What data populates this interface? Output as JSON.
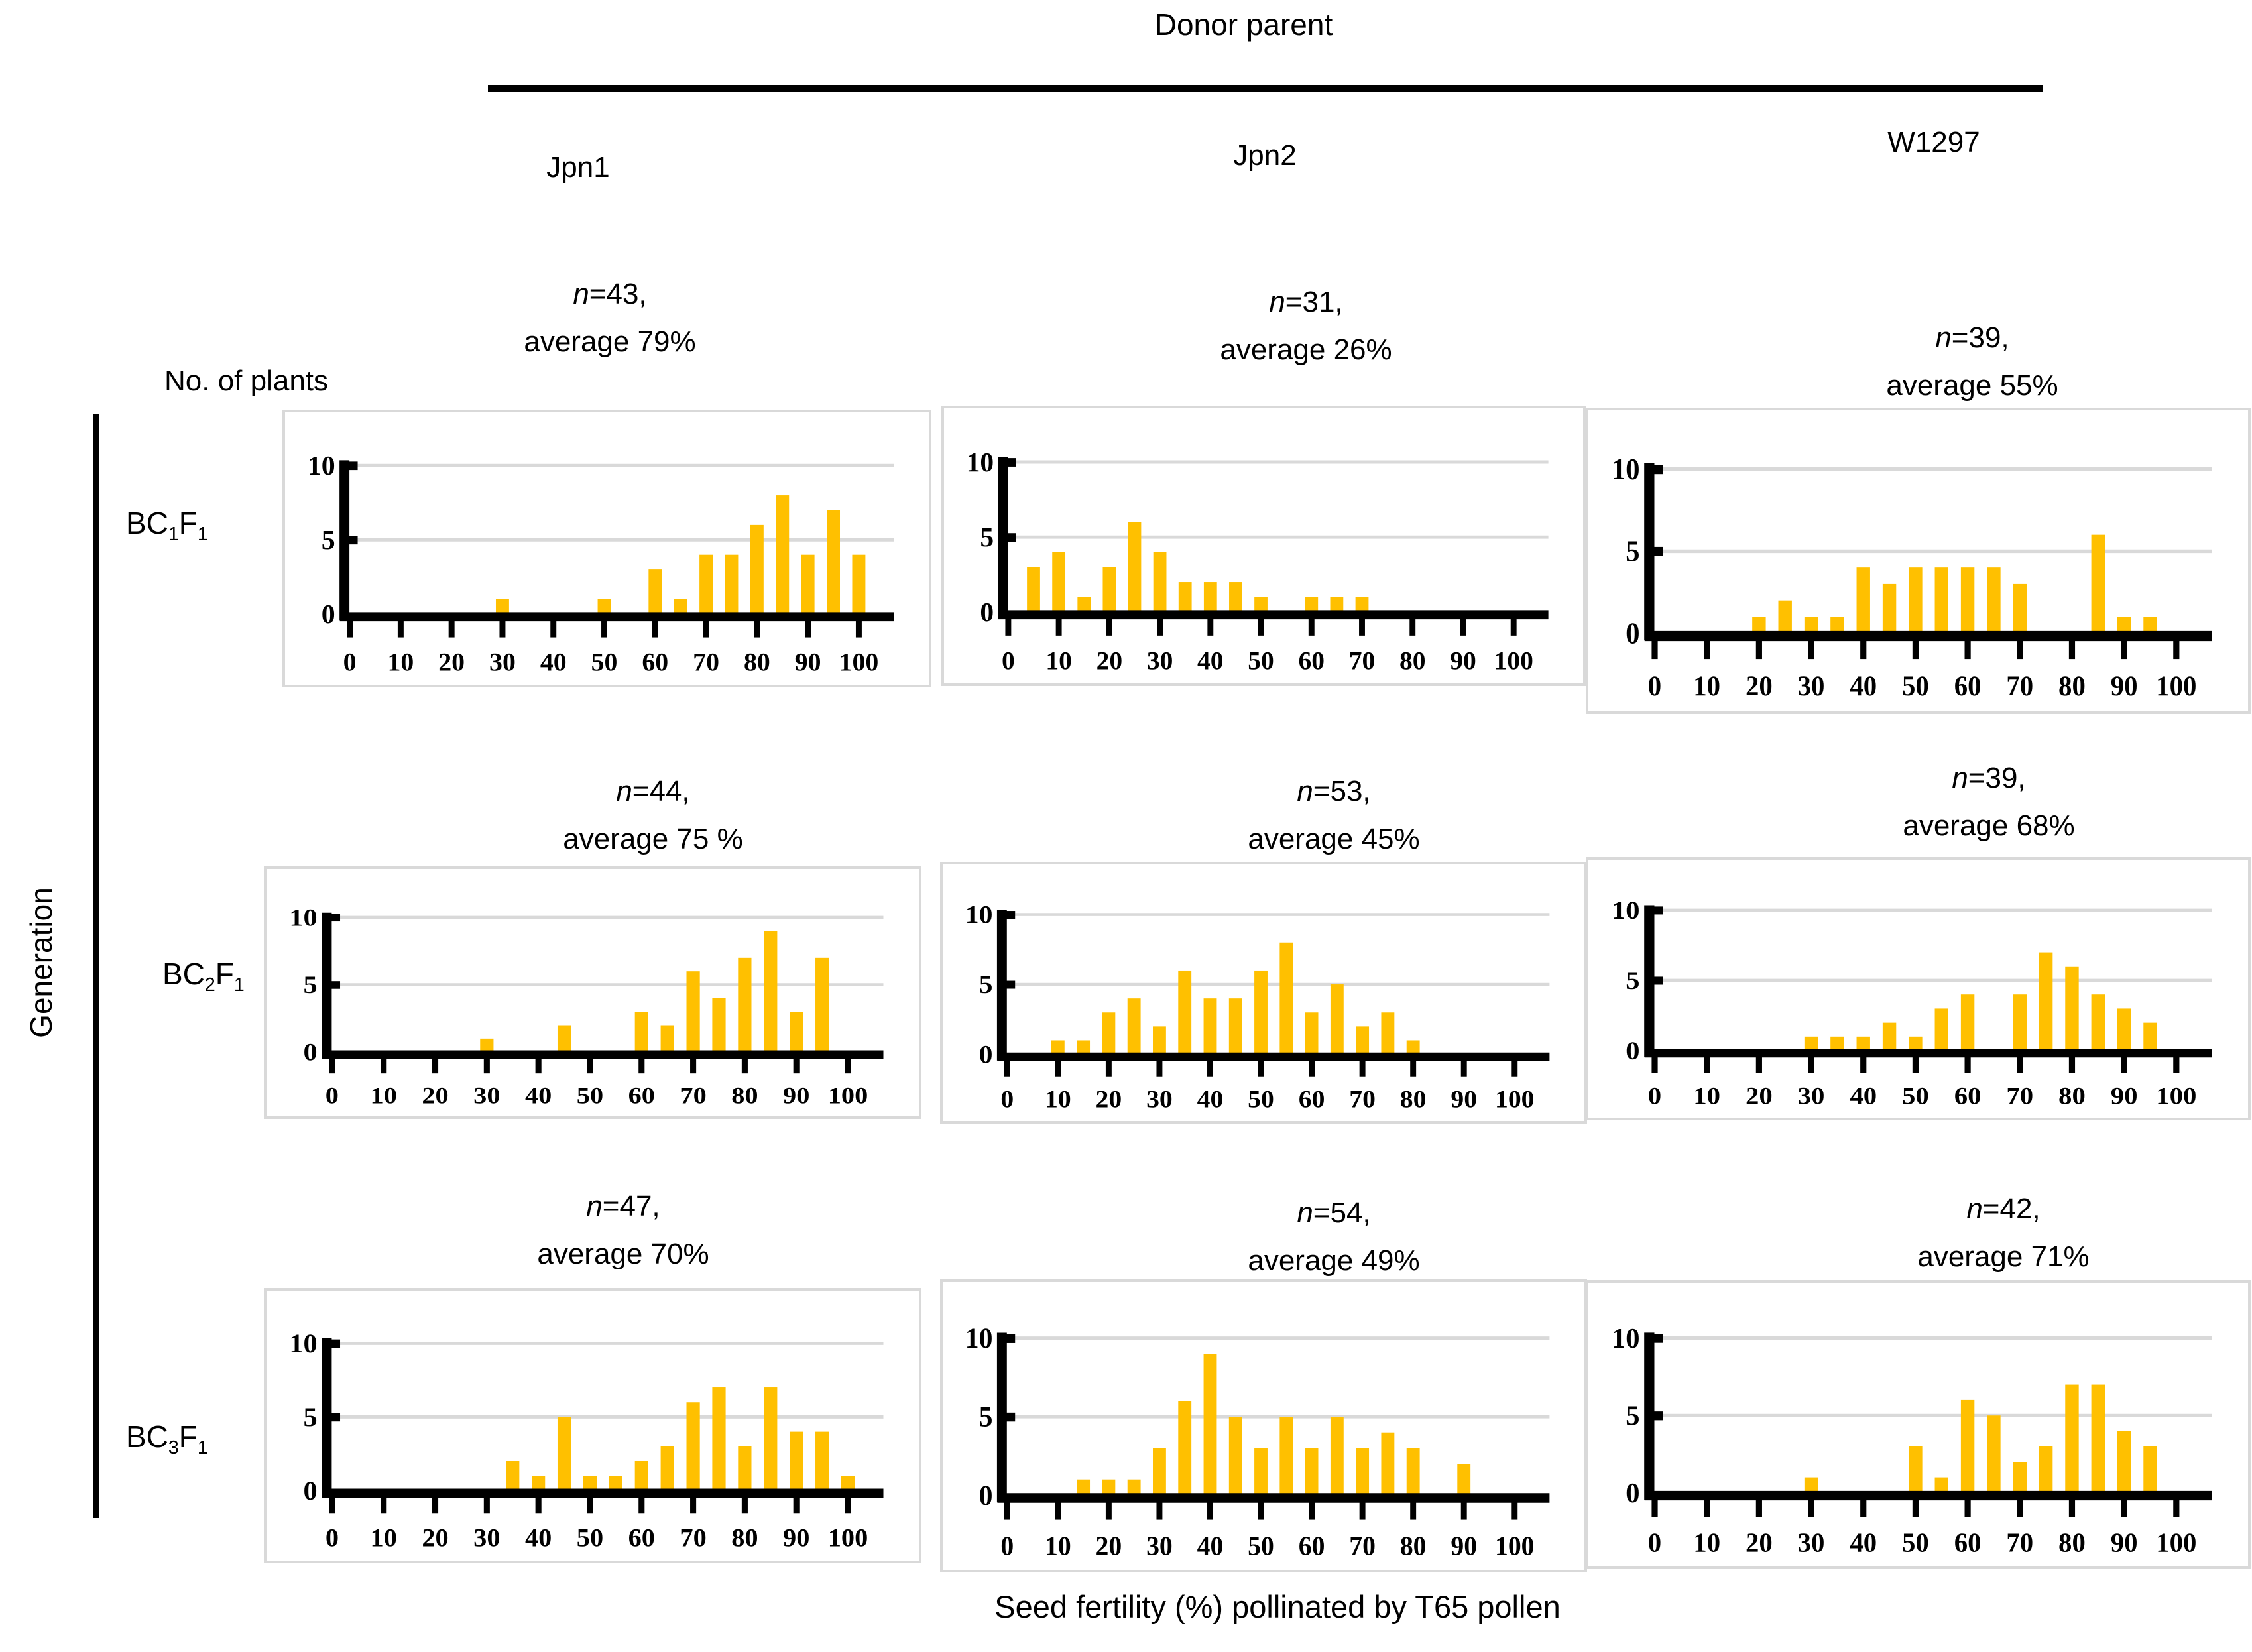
{
  "header": {
    "title": "Donor parent"
  },
  "columns": [
    {
      "label": "Jpn1"
    },
    {
      "label": "Jpn2"
    },
    {
      "label": "W1297"
    }
  ],
  "rows": [
    {
      "p1": "BC",
      "s1": "1",
      "p2": "F",
      "s2": "1"
    },
    {
      "p1": "BC",
      "s1": "2",
      "p2": "F",
      "s2": "1"
    },
    {
      "p1": "BC",
      "s1": "3",
      "p2": "F",
      "s2": "1"
    }
  ],
  "side": {
    "title": "Generation"
  },
  "axes": {
    "y_title": "No. of plants",
    "x_title": "Seed fertility (%) pollinated by T65 pollen",
    "x_ticks": [
      0,
      10,
      20,
      30,
      40,
      50,
      60,
      70,
      80,
      90,
      100
    ],
    "y_ticks": [
      0,
      5,
      10
    ],
    "ylim": [
      0,
      10
    ]
  },
  "colors": {
    "bar": "#FFC000",
    "grid": "#D9D9D9",
    "axis": "#000000"
  },
  "chart_data": [
    {
      "type": "bar",
      "generation": "BC1F1",
      "donor_parent": "Jpn1",
      "n": 43,
      "average": "79%",
      "annotation": {
        "n_italic": "n",
        "n_rest": "=43,",
        "line2": "average 79%"
      },
      "bin_width": 5,
      "x": [
        30,
        50,
        60,
        65,
        70,
        75,
        80,
        85,
        90,
        95,
        100
      ],
      "values": [
        1,
        1,
        3,
        1,
        4,
        4,
        6,
        8,
        4,
        7,
        4
      ],
      "xlim": [
        0,
        100
      ],
      "ylim": [
        0,
        10
      ]
    },
    {
      "type": "bar",
      "generation": "BC1F1",
      "donor_parent": "Jpn2",
      "n": 31,
      "average": "26%",
      "annotation": {
        "n_italic": "n",
        "n_rest": "=31,",
        "line2": "average 26%"
      },
      "bin_width": 5,
      "x": [
        5,
        10,
        15,
        20,
        25,
        30,
        35,
        40,
        45,
        50,
        60,
        65,
        70
      ],
      "values": [
        3,
        4,
        1,
        3,
        6,
        4,
        2,
        2,
        2,
        1,
        1,
        1,
        1
      ],
      "xlim": [
        0,
        100
      ],
      "ylim": [
        0,
        10
      ]
    },
    {
      "type": "bar",
      "generation": "BC1F1",
      "donor_parent": "W1297",
      "n": 39,
      "average": "55%",
      "annotation": {
        "n_italic": "n",
        "n_rest": "=39,",
        "line2": "average 55%"
      },
      "bin_width": 5,
      "x": [
        20,
        25,
        30,
        35,
        40,
        45,
        50,
        55,
        60,
        65,
        70,
        85,
        90,
        95
      ],
      "values": [
        1,
        2,
        1,
        1,
        4,
        3,
        4,
        4,
        4,
        4,
        3,
        6,
        1,
        1
      ],
      "xlim": [
        0,
        100
      ],
      "ylim": [
        0,
        10
      ]
    },
    {
      "type": "bar",
      "generation": "BC2F1",
      "donor_parent": "Jpn1",
      "n": 44,
      "average": "75 %",
      "annotation": {
        "n_italic": "n",
        "n_rest": "=44,",
        "line2": "average 75 %"
      },
      "bin_width": 5,
      "x": [
        30,
        45,
        60,
        65,
        70,
        75,
        80,
        85,
        90,
        95
      ],
      "values": [
        1,
        2,
        3,
        2,
        6,
        4,
        7,
        9,
        3,
        7
      ],
      "xlim": [
        0,
        100
      ],
      "ylim": [
        0,
        10
      ]
    },
    {
      "type": "bar",
      "generation": "BC2F1",
      "donor_parent": "Jpn2",
      "n": 53,
      "average": "45%",
      "annotation": {
        "n_italic": "n",
        "n_rest": "=53,",
        "line2": "average 45%"
      },
      "bin_width": 5,
      "x": [
        10,
        15,
        20,
        25,
        30,
        35,
        40,
        45,
        50,
        55,
        60,
        65,
        70,
        75,
        80
      ],
      "values": [
        1,
        1,
        3,
        4,
        2,
        6,
        4,
        4,
        6,
        8,
        3,
        5,
        2,
        3,
        1
      ],
      "xlim": [
        0,
        100
      ],
      "ylim": [
        0,
        10
      ]
    },
    {
      "type": "bar",
      "generation": "BC2F1",
      "donor_parent": "W1297",
      "n": 39,
      "average": "68%",
      "annotation": {
        "n_italic": "n",
        "n_rest": "=39,",
        "line2": "average 68%"
      },
      "bin_width": 5,
      "x": [
        30,
        35,
        40,
        45,
        50,
        55,
        60,
        70,
        75,
        80,
        85,
        90,
        95
      ],
      "values": [
        1,
        1,
        1,
        2,
        1,
        3,
        4,
        4,
        7,
        6,
        4,
        3,
        2
      ],
      "xlim": [
        0,
        100
      ],
      "ylim": [
        0,
        10
      ]
    },
    {
      "type": "bar",
      "generation": "BC3F1",
      "donor_parent": "Jpn1",
      "n": 47,
      "average": "70%",
      "annotation": {
        "n_italic": "n",
        "n_rest": "=47,",
        "line2": "average 70%"
      },
      "bin_width": 5,
      "x": [
        35,
        40,
        45,
        50,
        55,
        60,
        65,
        70,
        75,
        80,
        85,
        90,
        95,
        100
      ],
      "values": [
        2,
        1,
        5,
        1,
        1,
        2,
        3,
        6,
        7,
        3,
        7,
        4,
        4,
        1
      ],
      "xlim": [
        0,
        100
      ],
      "ylim": [
        0,
        10
      ]
    },
    {
      "type": "bar",
      "generation": "BC3F1",
      "donor_parent": "Jpn2",
      "n": 54,
      "average": "49%",
      "annotation": {
        "n_italic": "n",
        "n_rest": "=54,",
        "line2": "average 49%"
      },
      "bin_width": 5,
      "x": [
        15,
        20,
        25,
        30,
        35,
        40,
        45,
        50,
        55,
        60,
        65,
        70,
        75,
        80,
        90
      ],
      "values": [
        1,
        1,
        1,
        3,
        6,
        9,
        5,
        3,
        5,
        3,
        5,
        3,
        4,
        3,
        2
      ],
      "xlim": [
        0,
        100
      ],
      "ylim": [
        0,
        10
      ]
    },
    {
      "type": "bar",
      "generation": "BC3F1",
      "donor_parent": "W1297",
      "n": 42,
      "average": "71%",
      "annotation": {
        "n_italic": "n",
        "n_rest": "=42,",
        "line2": "average 71%"
      },
      "bin_width": 5,
      "x": [
        30,
        50,
        55,
        60,
        65,
        70,
        75,
        80,
        85,
        90,
        95
      ],
      "values": [
        1,
        3,
        1,
        6,
        5,
        2,
        3,
        7,
        7,
        4,
        3
      ],
      "xlim": [
        0,
        100
      ],
      "ylim": [
        0,
        10
      ]
    }
  ]
}
